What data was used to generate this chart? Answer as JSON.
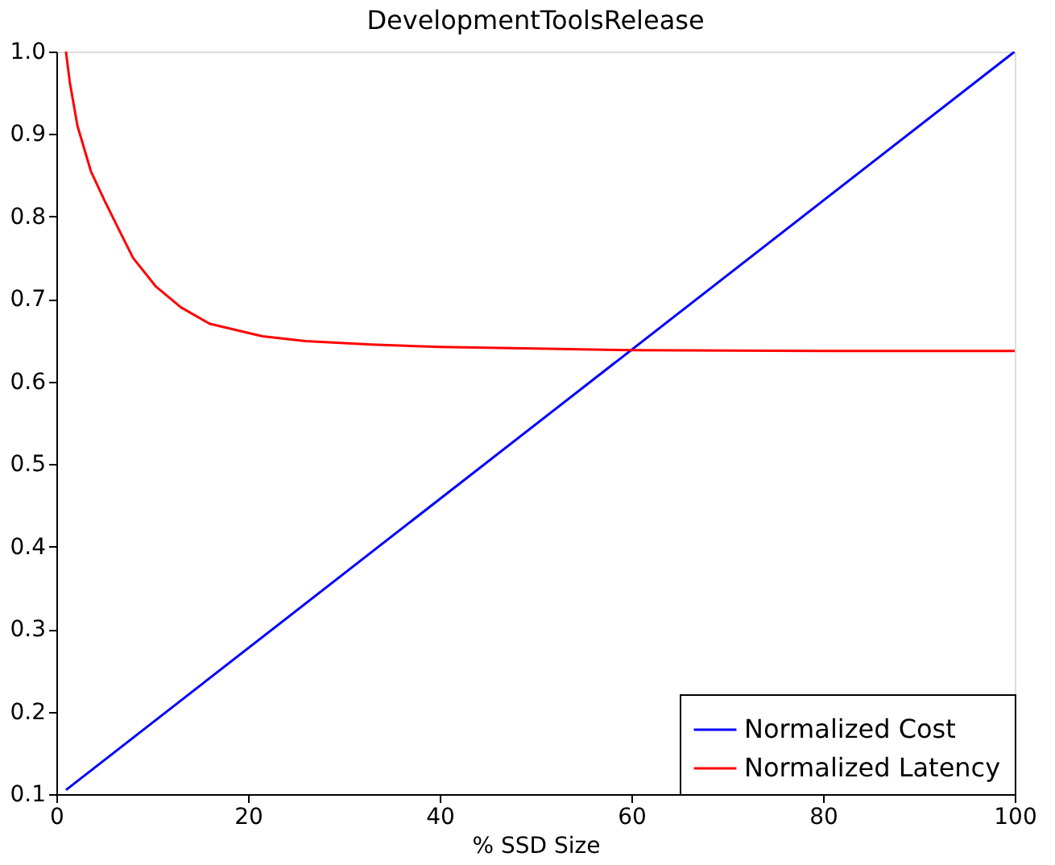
{
  "chart_data": {
    "type": "line",
    "title": "DevelopmentToolsRelease",
    "xlabel": "% SSD Size",
    "xlim": [
      0,
      100
    ],
    "xticks": [
      0,
      20,
      40,
      60,
      80,
      100
    ],
    "ylim": [
      0.1,
      1.0
    ],
    "yticks": [
      0.1,
      0.2,
      0.3,
      0.4,
      0.5,
      0.6,
      0.7,
      0.8,
      0.9,
      {
        "value": 1,
        "label": "1.0"
      }
    ],
    "grid": false,
    "legend": "bottom right",
    "line_style": "solid",
    "marker": "none",
    "series": [
      {
        "name": "Normalized Cost",
        "color": "#0000ff",
        "x": [
          1,
          100
        ],
        "values": [
          0.105,
          1.0
        ]
      },
      {
        "name": "Normalized Latency",
        "color": "#ff0000",
        "x": [
          1,
          1.4,
          2.2,
          3.6,
          5,
          6.4,
          8,
          10.4,
          13,
          16,
          21.5,
          26,
          32.8,
          40,
          50,
          60,
          80,
          100
        ],
        "values": [
          1.0,
          0.963,
          0.91,
          0.855,
          0.82,
          0.787,
          0.75,
          0.715,
          0.69,
          0.67,
          0.655,
          0.649,
          0.645,
          0.642,
          0.64,
          0.638,
          0.637,
          0.637
        ]
      }
    ]
  }
}
